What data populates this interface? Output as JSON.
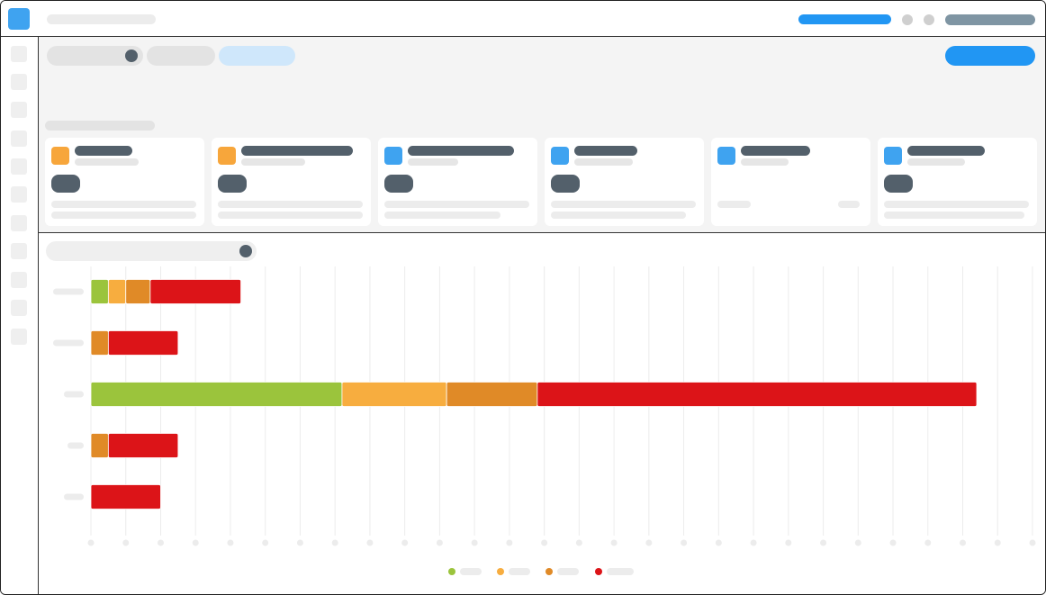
{
  "app": {
    "logo_icon": "app-logo-icon"
  },
  "colors": {
    "primary": "#2196f3",
    "logo": "#3fa3f0",
    "dark": "#53606b",
    "icon_orange": "#f7a63b",
    "icon_blue": "#3fa3f0"
  },
  "cards": [
    {
      "icon": "orange"
    },
    {
      "icon": "orange"
    },
    {
      "icon": "blue"
    },
    {
      "icon": "blue"
    },
    {
      "icon": "blue"
    },
    {
      "icon": "blue"
    }
  ],
  "chart_data": {
    "type": "bar",
    "orientation": "horizontal",
    "stacked": true,
    "grid": true,
    "legend_position": "bottom-center",
    "xlim": [
      0,
      27
    ],
    "categories": [
      "",
      "",
      "",
      "",
      ""
    ],
    "series": [
      {
        "color": "#9bc43c",
        "values": [
          0.5,
          0,
          7.2,
          0,
          0
        ]
      },
      {
        "color": "#f7ad3f",
        "values": [
          0.5,
          0,
          3,
          0,
          0
        ]
      },
      {
        "color": "#e08a27",
        "values": [
          0.7,
          0.5,
          2.6,
          0.5,
          0
        ]
      },
      {
        "color": "#dc1418",
        "values": [
          2.6,
          2,
          12.6,
          2,
          2
        ]
      }
    ]
  }
}
